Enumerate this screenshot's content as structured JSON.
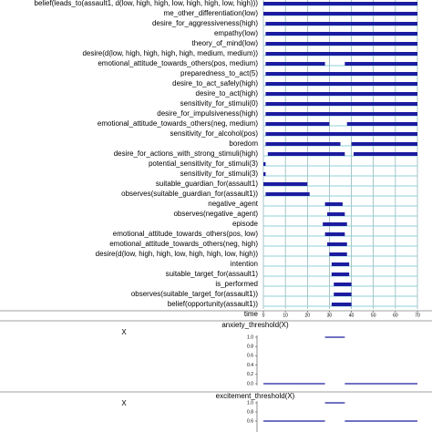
{
  "chart_data": [
    {
      "type": "timeline",
      "xlabel": "time",
      "xlim": [
        0,
        70
      ],
      "xticks": [
        0,
        10,
        20,
        30,
        40,
        50,
        60,
        70
      ],
      "color": "#1c1ca0",
      "false_color": "#8fd0d8",
      "grid": true,
      "rows": [
        {
          "label": "belief(leads_to(assault1, d(low, high, high, low, high, high, low, high)))",
          "intervals": [
            [
              0,
              70
            ]
          ]
        },
        {
          "label": "me_other_differentiation(low)",
          "intervals": [
            [
              0,
              70
            ]
          ]
        },
        {
          "label": "desire_for_aggressiveness(high)",
          "intervals": [
            [
              1,
              70
            ]
          ]
        },
        {
          "label": "empathy(low)",
          "intervals": [
            [
              1,
              70
            ]
          ]
        },
        {
          "label": "theory_of_mind(low)",
          "intervals": [
            [
              1,
              70
            ]
          ]
        },
        {
          "label": "desire(d(low, high, high, high, high, medium, medium))",
          "intervals": [
            [
              1,
              70
            ]
          ]
        },
        {
          "label": "emotional_attitude_towards_others(pos, medium)",
          "intervals": [
            [
              1,
              28
            ],
            [
              37,
              70
            ]
          ]
        },
        {
          "label": "preparedness_to_act(5)",
          "intervals": [
            [
              1,
              70
            ]
          ]
        },
        {
          "label": "desire_to_act_safely(high)",
          "intervals": [
            [
              1,
              70
            ]
          ]
        },
        {
          "label": "desire_to_act(high)",
          "intervals": [
            [
              1,
              70
            ]
          ]
        },
        {
          "label": "sensitivity_for_stimuli(0)",
          "intervals": [
            [
              1,
              70
            ]
          ]
        },
        {
          "label": "desire_for_impulsiveness(high)",
          "intervals": [
            [
              1,
              70
            ]
          ]
        },
        {
          "label": "emotional_attitude_towards_others(neg, medium)",
          "intervals": [
            [
              1,
              30
            ],
            [
              38,
              70
            ]
          ]
        },
        {
          "label": "sensitivity_for_alcohol(pos)",
          "intervals": [
            [
              1,
              70
            ]
          ]
        },
        {
          "label": "boredom",
          "intervals": [
            [
              1,
              35
            ],
            [
              40,
              70
            ]
          ]
        },
        {
          "label": "desire_for_actions_with_strong_stimuli(high)",
          "intervals": [
            [
              2,
              37
            ],
            [
              41,
              70
            ]
          ]
        },
        {
          "label": "potential_sensitivity_for_stimuli(3)",
          "intervals": [
            [
              0,
              1
            ]
          ]
        },
        {
          "label": "sensitivity_for_stimuli(3)",
          "intervals": [
            [
              0,
              1
            ]
          ]
        },
        {
          "label": "suitable_guardian_for(assault1)",
          "intervals": [
            [
              0,
              20
            ]
          ]
        },
        {
          "label": "observes(suitable_guardian_for(assault1))",
          "intervals": [
            [
              1,
              21
            ]
          ]
        },
        {
          "label": "negative_agent",
          "intervals": [
            [
              28,
              36
            ]
          ]
        },
        {
          "label": "observes(negative_agent)",
          "intervals": [
            [
              29,
              37
            ]
          ]
        },
        {
          "label": "episode",
          "intervals": [
            [
              27,
              38
            ]
          ]
        },
        {
          "label": "emotional_attitude_towards_others(pos, low)",
          "intervals": [
            [
              28,
              37
            ]
          ]
        },
        {
          "label": "emotional_attitude_towards_others(neg, high)",
          "intervals": [
            [
              29,
              38
            ]
          ]
        },
        {
          "label": "desire(d(low, high, high, low, high, high, low, high))",
          "intervals": [
            [
              30,
              38
            ]
          ]
        },
        {
          "label": "intention",
          "intervals": [
            [
              31,
              39
            ]
          ]
        },
        {
          "label": "suitable_target_for(assault1)",
          "intervals": [
            [
              31,
              39
            ]
          ]
        },
        {
          "label": "is_performed",
          "intervals": [
            [
              32,
              40
            ]
          ]
        },
        {
          "label": "observes(suitable_target_for(assault1))",
          "intervals": [
            [
              32,
              40
            ]
          ]
        },
        {
          "label": "belief(opportunity(assault1))",
          "intervals": [
            [
              31,
              40
            ]
          ]
        }
      ]
    },
    {
      "type": "step",
      "title": "anxiety_threshold(X)",
      "ylabel": "X",
      "color": "#1c1ca0",
      "xlim": [
        0,
        70
      ],
      "ylim": [
        0,
        1
      ],
      "yticks": [
        {
          "value": 0,
          "label": "0.0"
        },
        {
          "value": 0.2,
          "label": "0.2"
        },
        {
          "value": 0.4,
          "label": "0.4"
        },
        {
          "value": 0.6,
          "label": "0.6"
        },
        {
          "value": 0.8,
          "label": "0.8"
        },
        {
          "value": 1,
          "label": "1.0"
        }
      ],
      "segments": [
        {
          "x": [
            0,
            28
          ],
          "value": 0
        },
        {
          "x": [
            28,
            37
          ],
          "value": 1
        },
        {
          "x": [
            37,
            70
          ],
          "value": 0
        }
      ]
    },
    {
      "type": "step",
      "title": "excitement_threshold(X)",
      "ylabel": "X",
      "color": "#1c1ca0",
      "xlim": [
        0,
        70
      ],
      "ylim": [
        0.4,
        1
      ],
      "yticks": [
        {
          "value": 0.6,
          "label": "0.6"
        },
        {
          "value": 0.8,
          "label": "0.8"
        },
        {
          "value": 1,
          "label": "1.0"
        }
      ],
      "segments": [
        {
          "x": [
            0,
            28
          ],
          "value": 0.6
        },
        {
          "x": [
            28,
            37
          ],
          "value": 1
        },
        {
          "x": [
            37,
            70
          ],
          "value": 0.6
        }
      ]
    }
  ]
}
